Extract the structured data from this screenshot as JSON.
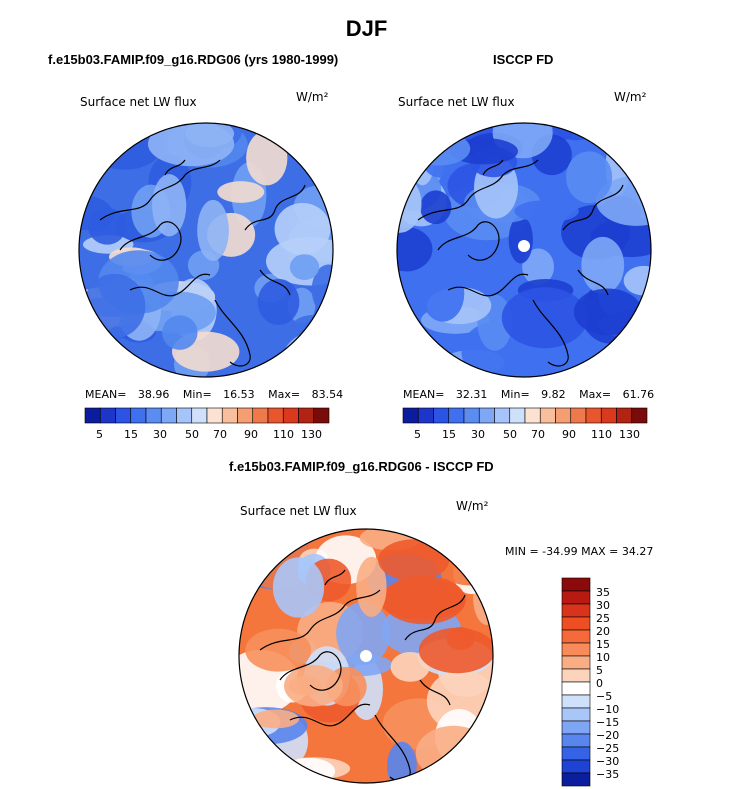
{
  "figure": {
    "title": "DJF"
  },
  "chart_data": [
    {
      "type": "heatmap",
      "projection": "polar-stereographic-north",
      "title": "f.e15b03.FAMIP.f09_g16.RDG06 (yrs 1980-1999)",
      "variable": "Surface net LW flux",
      "units": "W/m²",
      "stats": {
        "mean_label": "MEAN=",
        "mean": "38.96",
        "min_label": "Min=",
        "min": "16.53",
        "max_label": "Max=",
        "max": "83.54"
      },
      "colorbar": {
        "orientation": "horizontal",
        "tick_labels": [
          "5",
          "15",
          "30",
          "50",
          "70",
          "90",
          "110",
          "130"
        ],
        "colors": [
          "#0c1c9e",
          "#1d35c8",
          "#2c54e4",
          "#3e70f0",
          "#5a8cf2",
          "#7ea8f6",
          "#a6c4fa",
          "#cfe0fb",
          "#fbe2d3",
          "#f8bf9c",
          "#f59e72",
          "#f0794c",
          "#e9552d",
          "#d9391c",
          "#b22314",
          "#7a0b0b"
        ]
      },
      "field_palette": [
        "#2f5ce0",
        "#3d6ee6",
        "#5287ee",
        "#6f9ef2",
        "#8eb4f5",
        "#b6cffa",
        "#f4ddcf"
      ]
    },
    {
      "type": "heatmap",
      "projection": "polar-stereographic-north",
      "title": "ISCCP FD",
      "variable": "Surface net LW flux",
      "units": "W/m²",
      "stats": {
        "mean_label": "MEAN=",
        "mean": "32.31",
        "min_label": "Min=",
        "min": "9.82",
        "max_label": "Max=",
        "max": "61.76"
      },
      "colorbar": {
        "orientation": "horizontal",
        "tick_labels": [
          "5",
          "15",
          "30",
          "50",
          "70",
          "90",
          "110",
          "130"
        ],
        "colors": [
          "#0c1c9e",
          "#1d35c8",
          "#2c54e4",
          "#3e70f0",
          "#5a8cf2",
          "#7ea8f6",
          "#a6c4fa",
          "#cfe0fb",
          "#fbe2d3",
          "#f8bf9c",
          "#f59e72",
          "#f0794c",
          "#e9552d",
          "#d9391c",
          "#b22314",
          "#7a0b0b"
        ]
      },
      "field_palette": [
        "#1d3fd0",
        "#2c54e4",
        "#3e70f0",
        "#5a8cf2",
        "#7ea8f6",
        "#a6c4fa"
      ]
    },
    {
      "type": "heatmap",
      "projection": "polar-stereographic-north",
      "title": "f.e15b03.FAMIP.f09_g16.RDG06 - ISCCP FD",
      "variable": "Surface net LW flux",
      "units": "W/m²",
      "range_text": "MIN = -34.99 MAX =  34.27",
      "colorbar": {
        "orientation": "vertical",
        "tick_labels": [
          "35",
          "30",
          "25",
          "20",
          "15",
          "10",
          "5",
          "0",
          "−5",
          "−10",
          "−15",
          "−20",
          "−25",
          "−30",
          "−35"
        ],
        "colors": [
          "#8c0a0a",
          "#b81a12",
          "#d8341c",
          "#ee4f22",
          "#f56a3a",
          "#f78c5a",
          "#f9ad84",
          "#fcd4bb",
          "#ffffff",
          "#cfe0fb",
          "#a9c6f9",
          "#7fa6f4",
          "#5885ee",
          "#3563e6",
          "#1d42d4",
          "#0b1e9e"
        ]
      },
      "field_palette": [
        "#f4763c",
        "#f7905c",
        "#f9ad84",
        "#fcd4bb",
        "#ffffff",
        "#cfe0fb",
        "#a9c6f9",
        "#7fa6f4",
        "#5885ee",
        "#ee5a2c"
      ]
    }
  ]
}
